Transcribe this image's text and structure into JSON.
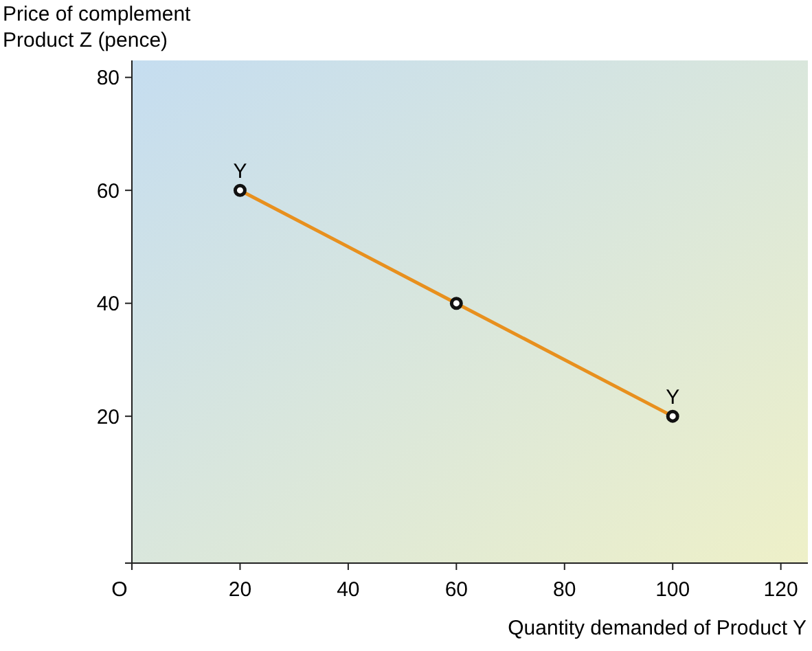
{
  "chart_data": {
    "type": "line",
    "ylabel": "Price of complement\nProduct Z (pence)",
    "xlabel": "Quantity demanded of Product Y",
    "x": [
      20,
      60,
      100
    ],
    "series": [
      {
        "color": "#e8901e",
        "values": [
          60,
          40,
          20
        ]
      }
    ],
    "xlim": [
      0,
      125
    ],
    "xticks": [
      {
        "value": 0,
        "label": "O"
      },
      20,
      40,
      60,
      80,
      100,
      120
    ],
    "ylim": [
      -6,
      83
    ],
    "yticks": [
      {
        "value": -6,
        "label": null
      },
      20,
      40,
      60,
      80
    ],
    "marker": "circle",
    "grid": false,
    "annotations": [
      {
        "text": "Y",
        "x": 20,
        "y": 60
      },
      {
        "text": "Y",
        "x": 100,
        "y": 20
      }
    ]
  }
}
